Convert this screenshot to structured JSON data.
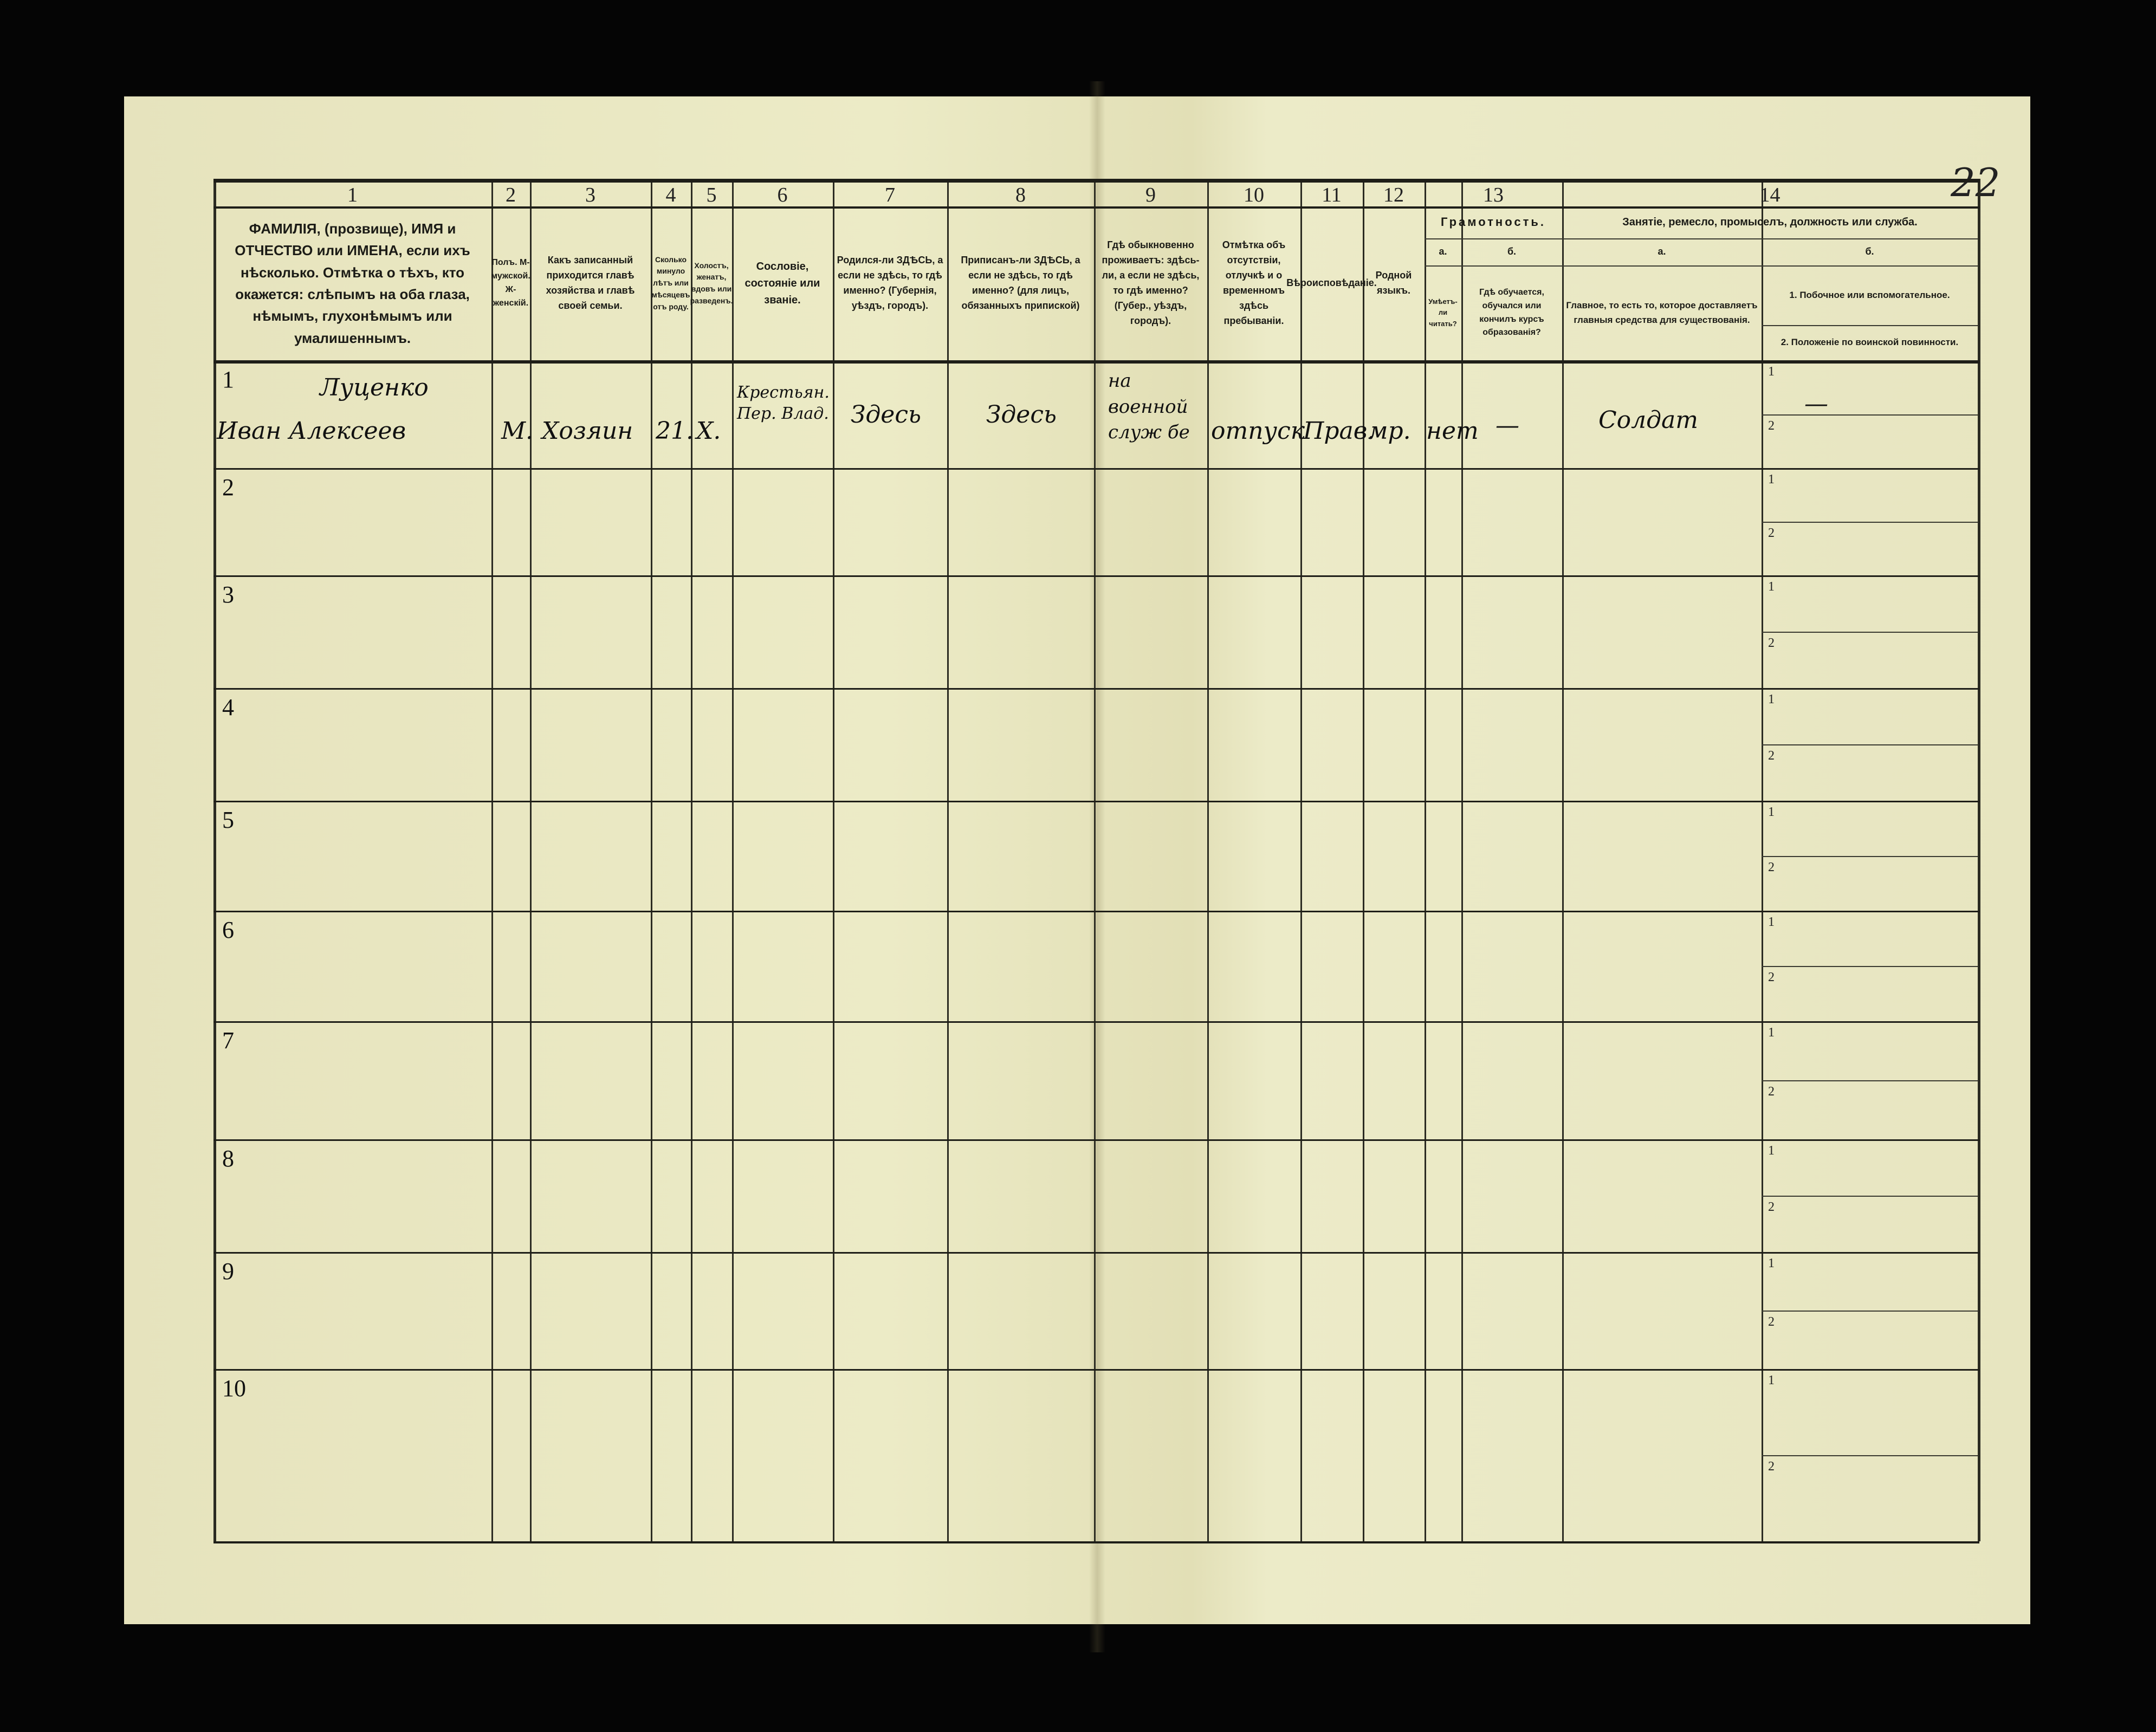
{
  "page_number": "22",
  "column_numbers": [
    "1",
    "2",
    "3",
    "4",
    "5",
    "6",
    "7",
    "8",
    "9",
    "10",
    "11",
    "12",
    "13",
    "14"
  ],
  "headers": {
    "c1": "ФАМИЛІЯ, (прозвище), ИМЯ и ОТЧЕСТВО или ИМЕНА, если ихъ нѣсколько. Отмѣтка о тѣхъ, кто окажется: слѣпымъ на оба глаза, нѣмымъ, глухонѣмымъ или умалишеннымъ.",
    "c2": "Полъ. М-мужской. Ж-женскій.",
    "c3": "Какъ записанный приходится главѣ хозяйства и главѣ своей семьи.",
    "c4": "Сколько минуло лѣтъ или мѣсяцевъ отъ роду.",
    "c5": "Холостъ, женатъ, вдовъ или разведенъ.",
    "c6": "Сословіе, состояніе или званіе.",
    "c7": "Родился-ли ЗДѢСЬ, а если не здѣсь, то гдѣ именно? (Губернія, уѣздъ, городъ).",
    "c8": "Приписанъ-ли ЗДѢСЬ, а если не здѣсь, то гдѣ именно? (для лицъ, обязанныхъ припиской)",
    "c9": "Гдѣ обыкновенно проживаетъ: здѣсь-ли, а если не здѣсь, то гдѣ именно? (Губер., уѣздъ, городъ).",
    "c10": "Отмѣтка объ отсутствіи, отлучкѣ и о временномъ здѣсь пребываніи.",
    "c11": "Вѣроисповѣданіе.",
    "c12": "Родной языкъ.",
    "c13": "Грамотность.",
    "c13a_letter": "а.",
    "c13b_letter": "б.",
    "c13a": "Умѣетъ-ли читать?",
    "c13b": "Гдѣ обучается, обучался или кончилъ курсъ образованія?",
    "c14": "Занятіе, ремесло, промыселъ, должность или служба.",
    "c14a_letter": "а.",
    "c14b_letter": "б.",
    "c14a": "Главное, то есть то, которое доставляетъ главныя средства для существованія.",
    "c14b1": "1. Побочное или вспомогательное.",
    "c14b2": "2. Положеніе по воинской повинности."
  },
  "rows": [
    "1",
    "2",
    "3",
    "4",
    "5",
    "6",
    "7",
    "8",
    "9",
    "10"
  ],
  "sub_labels": [
    "1",
    "2"
  ],
  "entry": {
    "surname": "Луценко",
    "name": "Иван Алексеев",
    "sex": "М.",
    "relation": "Хозяин",
    "age": "21.",
    "marital": "Х.",
    "estate": "Крестьян. Пер. Влад.",
    "birthplace": "Здесь",
    "registered": "Здесь",
    "residence": "на военной служ бе",
    "absence": "отпуск",
    "religion": "Прав.",
    "language": "мр.",
    "can_read": "нет",
    "education": "—",
    "occupation": "Солдат",
    "secondary": "—"
  }
}
